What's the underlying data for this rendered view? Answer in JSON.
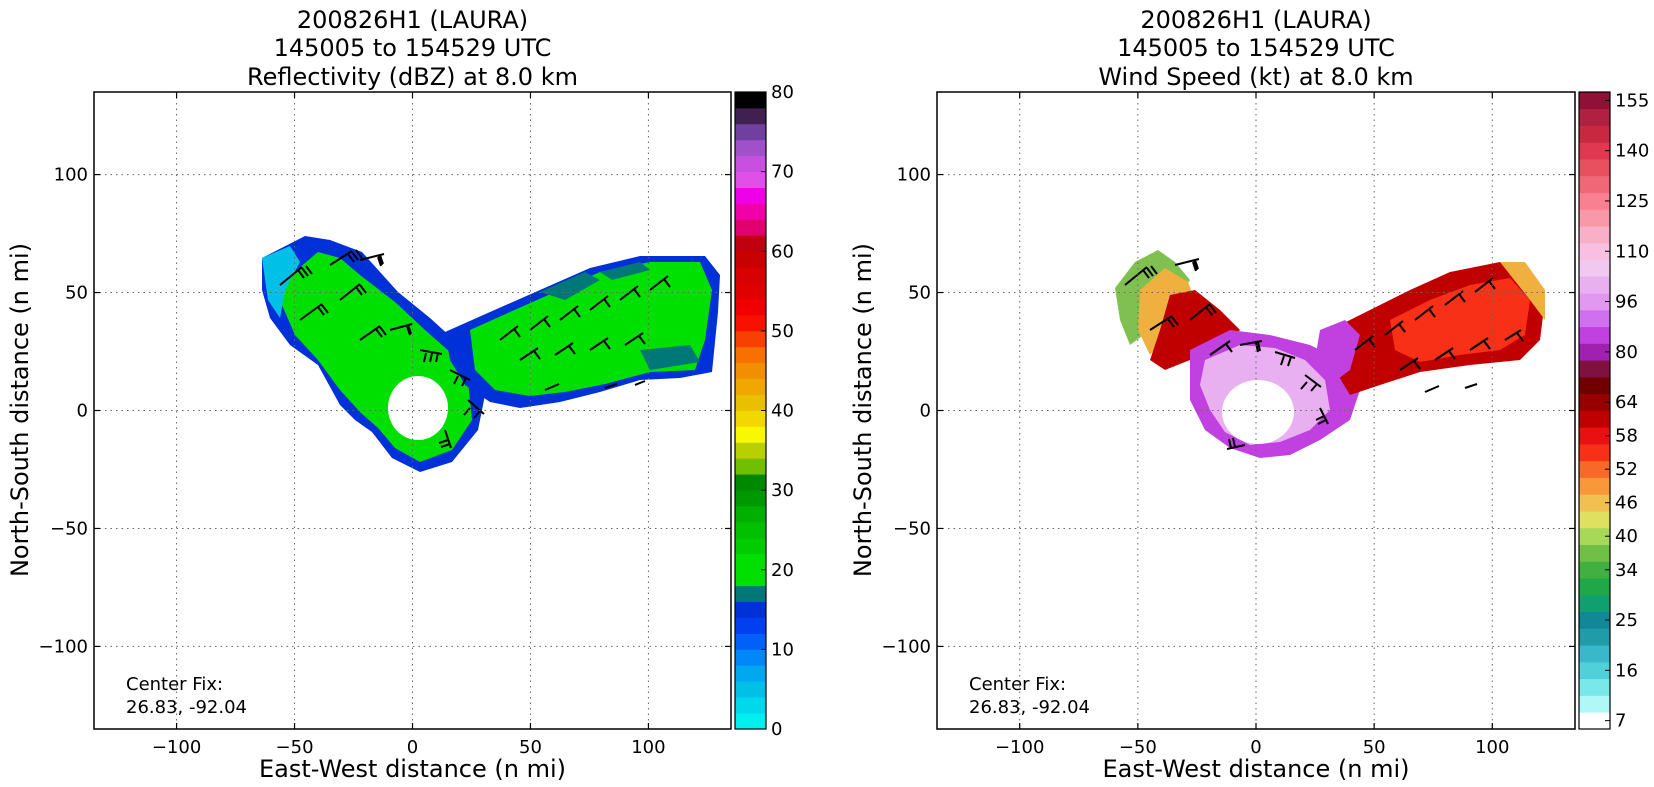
{
  "chart_data": [
    {
      "type": "heatmap",
      "title_lines": [
        "200826H1 (LAURA)",
        "145005 to 154529 UTC",
        "Reflectivity (dBZ) at 8.0 km"
      ],
      "xlabel": "East-West distance (n mi)",
      "ylabel": "North-South distance (n mi)",
      "xlim": [
        -135,
        135
      ],
      "ylim": [
        -135,
        135
      ],
      "xticks": [
        -100,
        -50,
        0,
        50,
        100
      ],
      "yticks": [
        -100,
        -50,
        0,
        50,
        100
      ],
      "xtick_labels": [
        "−100",
        "−50",
        "0",
        "50",
        "100"
      ],
      "ytick_labels": [
        "−100",
        "−50",
        "0",
        "50",
        "100"
      ],
      "grid": true,
      "annotation_lines": [
        "Center Fix:",
        "26.83, -92.04"
      ],
      "colorbar": {
        "min": 0,
        "max": 80,
        "tick_values": [
          0,
          10,
          20,
          30,
          40,
          50,
          60,
          70,
          80
        ],
        "tick_labels": [
          "0",
          "10",
          "20",
          "30",
          "40",
          "50",
          "60",
          "70",
          "80"
        ],
        "colors": [
          "#00f0f0",
          "#00d8ec",
          "#00c0e8",
          "#00a8f0",
          "#0088f8",
          "#0060f8",
          "#0040f0",
          "#0030d8",
          "#007878",
          "#00e000",
          "#00e000",
          "#00cc00",
          "#00c000",
          "#00b000",
          "#009800",
          "#008800",
          "#70c000",
          "#b8d000",
          "#f8f800",
          "#f0d800",
          "#e8c000",
          "#f0a800",
          "#f09000",
          "#f87000",
          "#f84000",
          "#f81000",
          "#f00000",
          "#e00000",
          "#d80000",
          "#c80000",
          "#c00010",
          "#e00070",
          "#f000a8",
          "#f000e8",
          "#e050e8",
          "#c850e0",
          "#a050c8",
          "#7040a0",
          "#402050",
          "#000000"
        ]
      },
      "field": {
        "description_colors": [
          "#0030d8",
          "#00e000",
          "#00c0e8",
          "#007878"
        ]
      }
    },
    {
      "type": "heatmap",
      "title_lines": [
        "200826H1 (LAURA)",
        "145005 to 154529 UTC",
        "Wind Speed (kt) at 8.0 km"
      ],
      "xlabel": "East-West distance (n mi)",
      "ylabel": "North-South distance (n mi)",
      "xlim": [
        -135,
        135
      ],
      "ylim": [
        -135,
        135
      ],
      "xticks": [
        -100,
        -50,
        0,
        50,
        100
      ],
      "yticks": [
        -100,
        -50,
        0,
        50,
        100
      ],
      "xtick_labels": [
        "−100",
        "−50",
        "0",
        "50",
        "100"
      ],
      "ytick_labels": [
        "−100",
        "−50",
        "0",
        "50",
        "100"
      ],
      "grid": true,
      "annotation_lines": [
        "Center Fix:",
        "26.83, -92.04"
      ],
      "colorbar": {
        "tick_labels": [
          "7",
          "16",
          "25",
          "34",
          "40",
          "46",
          "52",
          "58",
          "64",
          "80",
          "96",
          "110",
          "125",
          "140",
          "155"
        ],
        "tick_bin_index": [
          0,
          3,
          6,
          9,
          11,
          13,
          15,
          17,
          19,
          22,
          25,
          28,
          31,
          34,
          37
        ],
        "colors": [
          "#ffffff",
          "#b0f8f8",
          "#78e8e8",
          "#50d0d8",
          "#38b8c8",
          "#209ca8",
          "#108898",
          "#10a070",
          "#20a848",
          "#40b040",
          "#70c048",
          "#a8d858",
          "#e0e060",
          "#f0c050",
          "#f89838",
          "#f86828",
          "#f83018",
          "#e81010",
          "#c00000",
          "#980000",
          "#700000",
          "#801040",
          "#a020b0",
          "#c040e0",
          "#d070f0",
          "#e098f0",
          "#e8b0f0",
          "#f0c8f0",
          "#f8c0e0",
          "#f8b0c8",
          "#f898a8",
          "#f88090",
          "#f06878",
          "#e85060",
          "#e03850",
          "#c82840",
          "#b02040",
          "#901038"
        ]
      },
      "field": {
        "description_colors": [
          "#c040e0",
          "#e8b0f0",
          "#c00000",
          "#f83018",
          "#80c050",
          "#f0b040"
        ]
      }
    }
  ]
}
